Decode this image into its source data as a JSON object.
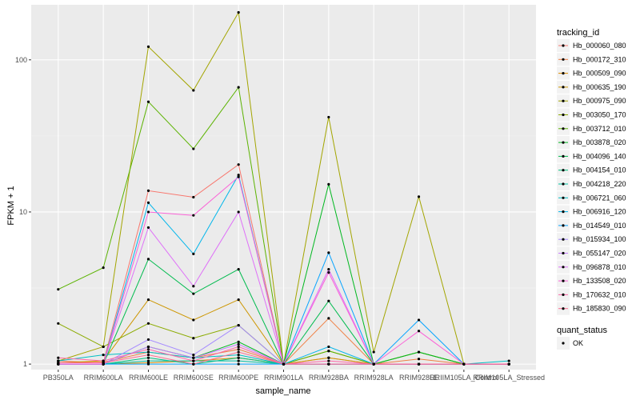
{
  "chart_data": {
    "type": "line",
    "xlabel": "sample_name",
    "ylabel": "FPKM + 1",
    "yscale": "log",
    "ylim": [
      0.92,
      230
    ],
    "yticks": [
      1,
      10,
      100
    ],
    "ytick_labels": [
      "1",
      "10",
      "100"
    ],
    "grid": true,
    "legend_position": "right",
    "categories": [
      "PB350LA",
      "RRIM600LA",
      "RRIM600LE",
      "RRIM600SE",
      "RRIM600PE",
      "RRIM901LA",
      "RRIM928BA",
      "RRIM928LA",
      "RRIM928LE",
      "RRIIM105LA_Control",
      "RRIM105LA_Stressed"
    ],
    "color_legend": {
      "title": "tracking_id"
    },
    "point_legend": {
      "title": "quant_status",
      "items": [
        "OK"
      ]
    },
    "series": [
      {
        "name": "Hb_000060_080",
        "color": "#F8766D",
        "values": [
          1.05,
          1.02,
          13.8,
          12.5,
          20.5,
          1.0,
          1.1,
          1.0,
          1.0,
          1.0,
          1.0
        ]
      },
      {
        "name": "Hb_000172_310",
        "color": "#F07F43",
        "values": [
          1.02,
          1.03,
          1.2,
          1.1,
          1.25,
          1.0,
          2.0,
          1.0,
          1.08,
          1.0,
          1.0
        ]
      },
      {
        "name": "Hb_000509_090",
        "color": "#DE8C00",
        "values": [
          1.0,
          1.0,
          1.02,
          1.05,
          1.1,
          1.0,
          1.0,
          1.0,
          1.0,
          1.0,
          1.0
        ]
      },
      {
        "name": "Hb_000635_190",
        "color": "#CD9600",
        "values": [
          1.02,
          1.05,
          2.65,
          1.95,
          2.65,
          1.0,
          1.1,
          1.0,
          1.0,
          1.0,
          1.0
        ]
      },
      {
        "name": "Hb_000975_090",
        "color": "#A3A500",
        "values": [
          1.05,
          1.3,
          122,
          63,
          205,
          1.0,
          42,
          1.2,
          12.6,
          1.0,
          1.0
        ]
      },
      {
        "name": "Hb_003050_170",
        "color": "#8BAB00",
        "values": [
          1.85,
          1.3,
          1.85,
          1.48,
          1.8,
          1.0,
          1.22,
          1.0,
          1.2,
          1.0,
          1.0
        ]
      },
      {
        "name": "Hb_003712_010",
        "color": "#5BB300",
        "values": [
          3.1,
          4.3,
          53,
          26,
          66,
          1.0,
          1.22,
          1.0,
          1.2,
          1.0,
          1.0
        ]
      },
      {
        "name": "Hb_003878_020",
        "color": "#00B81F",
        "values": [
          1.0,
          1.0,
          1.3,
          1.1,
          1.4,
          1.0,
          15.2,
          1.0,
          1.2,
          1.0,
          1.0
        ]
      },
      {
        "name": "Hb_004096_140",
        "color": "#00BB4E",
        "values": [
          1.0,
          1.0,
          4.9,
          2.9,
          4.2,
          1.0,
          2.6,
          1.0,
          1.0,
          1.0,
          1.0
        ]
      },
      {
        "name": "Hb_004154_010",
        "color": "#00BF7D",
        "values": [
          1.0,
          1.0,
          1.1,
          1.0,
          1.1,
          1.0,
          1.0,
          1.0,
          1.0,
          1.0,
          1.0
        ]
      },
      {
        "name": "Hb_004218_220",
        "color": "#00C1A3",
        "values": [
          1.0,
          1.0,
          1.05,
          1.05,
          1.05,
          1.0,
          1.0,
          1.0,
          1.0,
          1.0,
          1.0
        ]
      },
      {
        "name": "Hb_006721_060",
        "color": "#00BFC4",
        "values": [
          1.05,
          1.15,
          1.2,
          1.1,
          1.15,
          1.0,
          1.0,
          1.0,
          1.0,
          1.0,
          1.05
        ]
      },
      {
        "name": "Hb_006916_120",
        "color": "#00B6EB",
        "values": [
          1.0,
          1.0,
          11.5,
          5.3,
          17.5,
          1.0,
          1.3,
          1.0,
          1.0,
          1.0,
          1.0
        ]
      },
      {
        "name": "Hb_014549_010",
        "color": "#06A4FF",
        "values": [
          1.0,
          1.0,
          1.0,
          1.0,
          1.0,
          1.0,
          5.4,
          1.0,
          1.95,
          1.0,
          1.0
        ]
      },
      {
        "name": "Hb_015934_100",
        "color": "#A58AFF",
        "values": [
          1.0,
          1.0,
          1.45,
          1.15,
          1.8,
          1.0,
          1.0,
          1.0,
          1.0,
          1.0,
          1.0
        ]
      },
      {
        "name": "Hb_055147_020",
        "color": "#C77CFF",
        "values": [
          1.0,
          1.0,
          1.3,
          1.1,
          1.35,
          1.0,
          1.0,
          1.0,
          1.0,
          1.0,
          1.0
        ]
      },
      {
        "name": "Hb_096878_010",
        "color": "#DF70F8",
        "values": [
          1.0,
          1.0,
          7.9,
          3.25,
          10,
          1.0,
          4.2,
          1.0,
          1.0,
          1.0,
          1.0
        ]
      },
      {
        "name": "Hb_133508_020",
        "color": "#FB61D7",
        "values": [
          1.0,
          1.0,
          10,
          9.5,
          17,
          1.0,
          4.0,
          1.0,
          1.65,
          1.0,
          1.0
        ]
      },
      {
        "name": "Hb_170632_010",
        "color": "#FF66A8",
        "values": [
          1.1,
          1.05,
          1.25,
          1.05,
          1.3,
          1.0,
          1.05,
          1.0,
          1.0,
          1.0,
          1.0
        ]
      },
      {
        "name": "Hb_185830_090",
        "color": "#FF6C91",
        "values": [
          1.02,
          1.02,
          1.15,
          1.0,
          1.2,
          1.0,
          1.0,
          1.0,
          1.0,
          1.0,
          1.0
        ]
      }
    ]
  }
}
